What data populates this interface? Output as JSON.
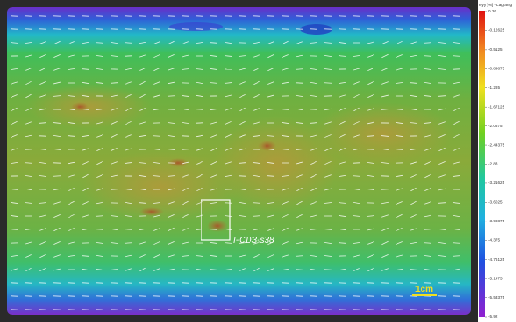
{
  "colorbar": {
    "title": "eyy [%] - Lagrang",
    "labels": [
      "0.26",
      "-0.12625",
      "-0.5125",
      "-0.89875",
      "-1.285",
      "-1.67125",
      "-2.0575",
      "-2.44375",
      "-2.83",
      "-3.21625",
      "-3.6025",
      "-3.98875",
      "-4.375",
      "-4.76125",
      "-5.1475",
      "-5.53375",
      "-5.92"
    ]
  },
  "annotations": {
    "region_label": "I-CD3-s38",
    "scale_bar": "1cm"
  }
}
